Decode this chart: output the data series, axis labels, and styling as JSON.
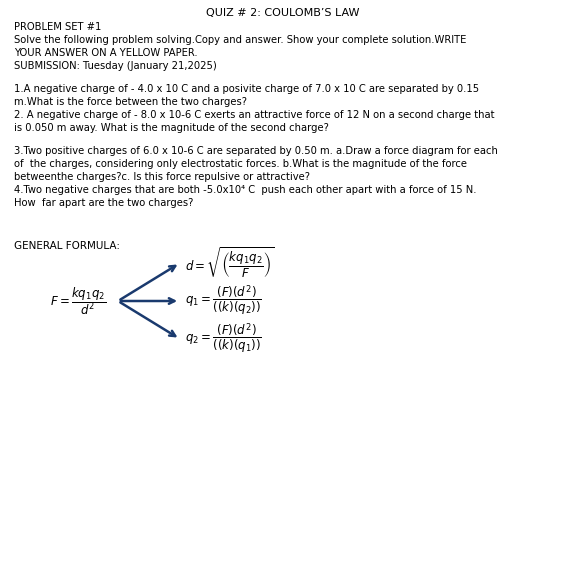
{
  "title": "QUIZ # 2: COULOMB’S LAW",
  "bg_color": "#ffffff",
  "text_color": "#000000",
  "arrow_color": "#1a3a6e",
  "header_lines": [
    "PROBLEM SET #1",
    "Solve the following problem solving.Copy and answer. Show your complete solution.WRITE",
    "YOUR ANSWER ON A YELLOW PAPER.",
    "SUBMISSION: Tuesday (January 21,2025)"
  ],
  "problem1": [
    "1.A negative charge of - 4.0 x 10 C and a posivite charge of 7.0 x 10 C are separated by 0.15",
    "m.What is the force between the two charges?"
  ],
  "problem2": [
    "2. A negative charge of - 8.0 x 10-6 C exerts an attractive force of 12 N on a second charge that",
    "is 0.050 m away. What is the magnitude of the second charge?"
  ],
  "problem3": [
    "3.Two positive charges of 6.0 x 10-6 C are separated by 0.50 m. a.Draw a force diagram for each",
    "of  the charges, considering only electrostatic forces. b.What is the magnitude of the force",
    "betweenthe charges?c. Is this force repulsive or attractive?"
  ],
  "problem4": [
    "4.Two negative charges that are both -5.0x10⁴ C  push each other apart with a force of 15 N.",
    "How  far apart are the two charges?"
  ],
  "general_formula_label": "GENERAL FORMULA:",
  "formula_main": "$F = \\dfrac{kq_1q_2}{d^2}$",
  "formula_d": "$d = \\sqrt{\\left(\\dfrac{kq_1q_2}{F}\\right)}$",
  "formula_q1": "$q_1 = \\dfrac{(F)(d^2)}{((k)(q_2))}$",
  "formula_q2": "$q_2 = \\dfrac{(F)(d^2)}{((k)(q_1))}$",
  "font_size_title": 8,
  "font_size_body": 7.2,
  "font_size_formula": 8.5,
  "font_size_gen": 7.5
}
